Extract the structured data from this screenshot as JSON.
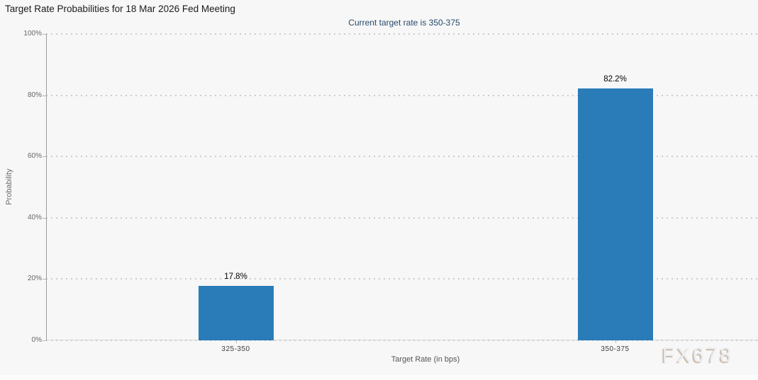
{
  "watermark": "FX678",
  "chart_data": {
    "type": "bar",
    "title": "Target Rate Probabilities for 18 Mar 2026 Fed Meeting",
    "subtitle": "Current target rate is 350-375",
    "xlabel": "Target Rate (in bps)",
    "ylabel": "Probability",
    "categories": [
      "325-350",
      "350-375"
    ],
    "values": [
      17.8,
      82.2
    ],
    "value_labels": [
      "17.8%",
      "82.2%"
    ],
    "ylim": [
      0,
      100
    ],
    "yticks": [
      "0%",
      "20%",
      "40%",
      "60%",
      "80%",
      "100%"
    ],
    "grid": "horizontal-dotted",
    "legend_position": "none",
    "bar_color": "#2a7cb8",
    "background_color": "#f7f7f7",
    "subtitle_color": "#27496d"
  }
}
